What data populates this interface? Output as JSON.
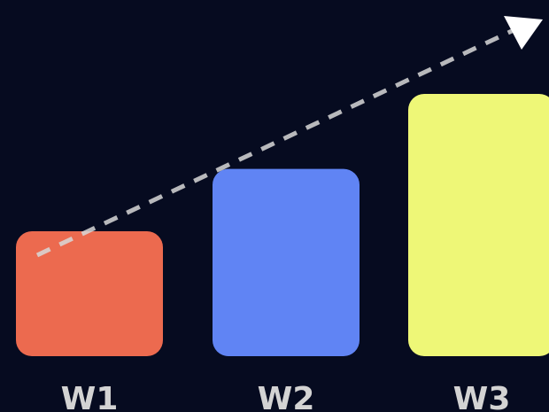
{
  "colors": {
    "background": "#060b20",
    "trend_arrow": "#d8d8d8",
    "tick_label": "#d3d3d3"
  },
  "chart_data": {
    "type": "bar",
    "title": "",
    "xlabel": "",
    "ylabel": "",
    "categories": [
      "W1",
      "W2",
      "W3"
    ],
    "values": [
      2,
      3,
      4.2
    ],
    "colors": [
      "#ec6a4f",
      "#6084f4",
      "#eef777"
    ],
    "ylim": [
      0,
      4.2
    ],
    "grid": false,
    "legend": "none",
    "annotations": [
      {
        "kind": "trend-arrow",
        "style": "dashed",
        "direction": "up-right"
      }
    ]
  }
}
